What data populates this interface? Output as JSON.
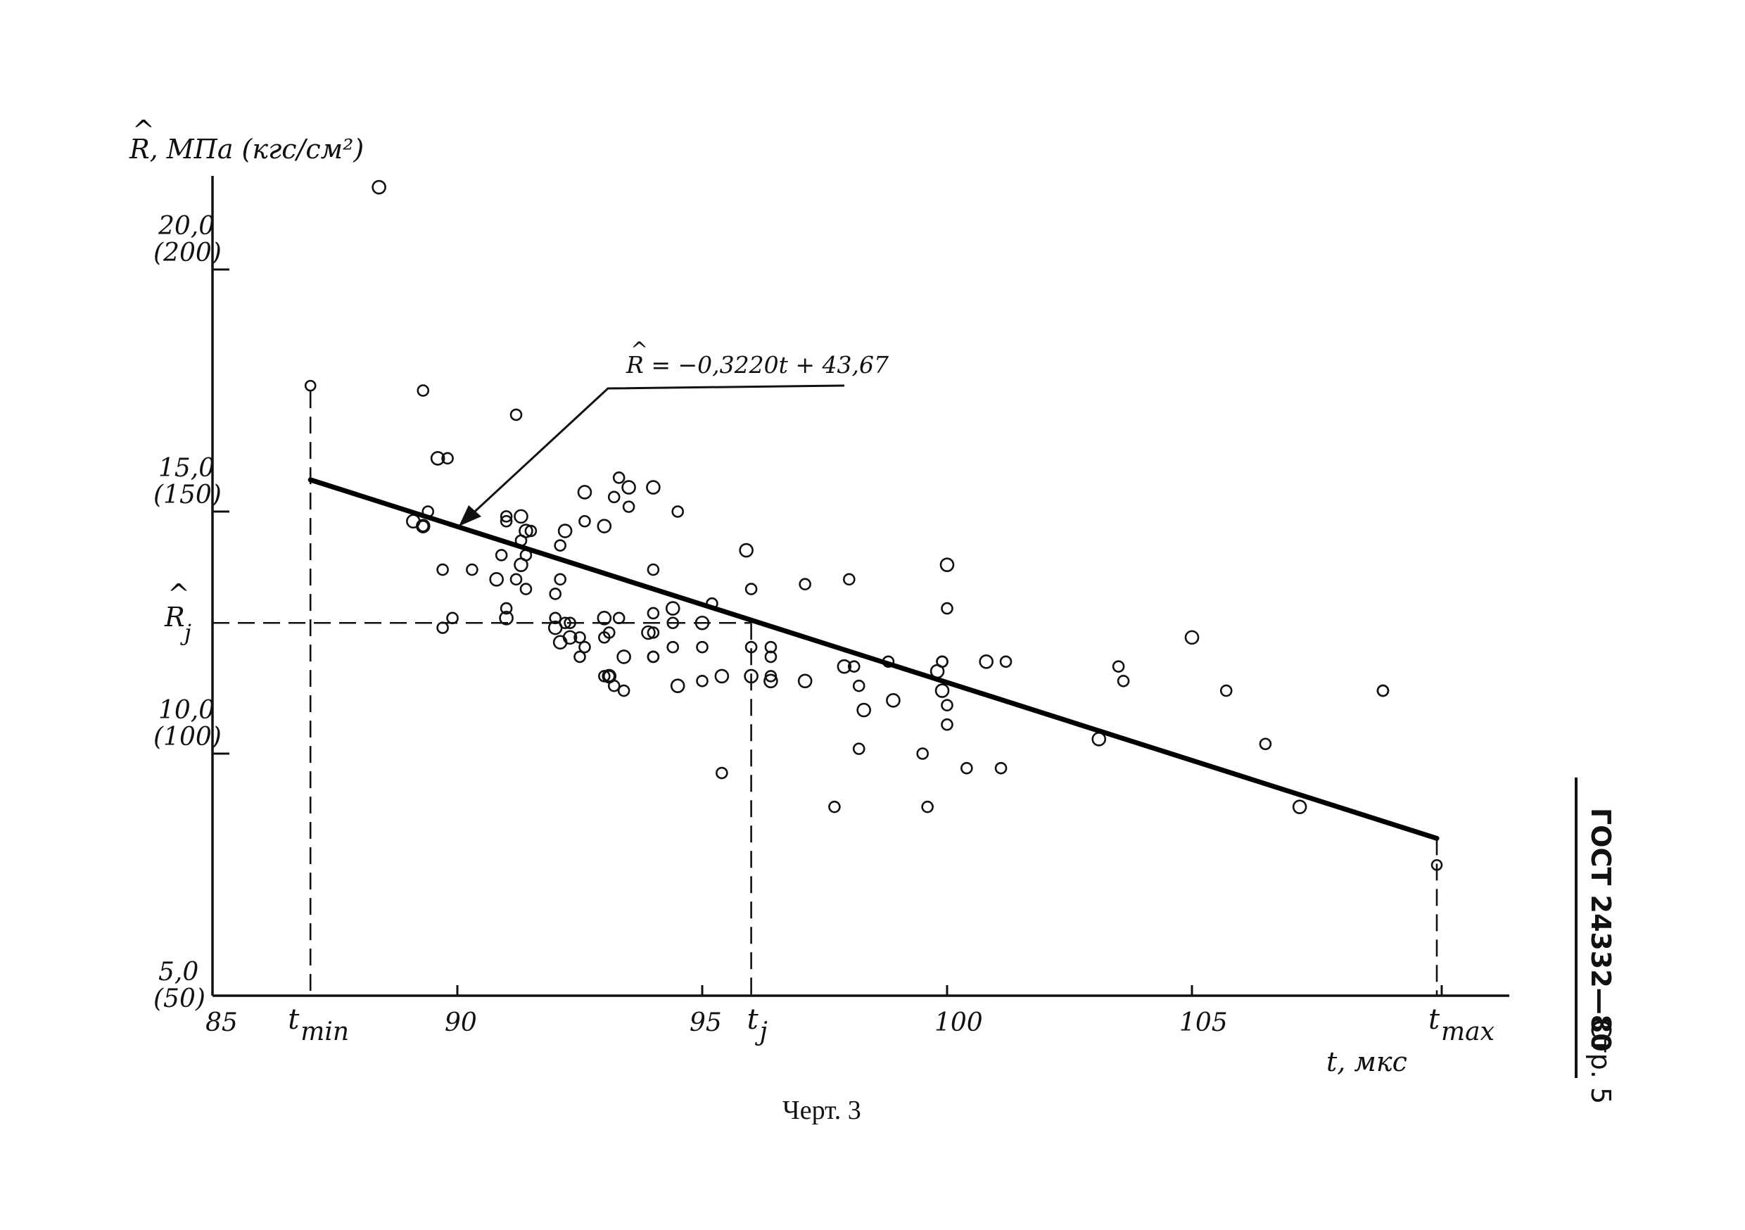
{
  "chart_data": {
    "type": "scatter",
    "x": [
      88.4,
      89.3,
      89.4,
      89.6,
      89.8,
      89.3,
      89.3,
      89.7,
      89.7,
      89.1,
      89.9,
      90.3,
      90.8,
      91.0,
      91.0,
      91.3,
      91.2,
      91.0,
      91.3,
      91.2,
      91.3,
      91.4,
      91.5,
      91.4,
      91.0,
      91.4,
      90.9,
      92.2,
      92.1,
      92.0,
      92.3,
      92.0,
      92.1,
      92.6,
      92.6,
      92.3,
      92.0,
      92.2,
      92.5,
      92.1,
      92.6,
      92.5,
      93.0,
      93.2,
      93.3,
      93.5,
      93.5,
      93.2,
      93.1,
      93.1,
      93.3,
      93.0,
      93.0,
      93.1,
      93.4,
      93.4,
      93.0,
      94.0,
      94.0,
      94.5,
      94.4,
      94.0,
      94.0,
      93.9,
      94.0,
      94.4,
      94.5,
      94.0,
      94.4,
      95.0,
      95.2,
      95.0,
      95.4,
      95.4,
      95.0,
      95.9,
      96.0,
      96.0,
      96.0,
      96.4,
      96.4,
      96.4,
      96.4,
      97.1,
      97.1,
      97.7,
      98.0,
      97.9,
      98.2,
      98.1,
      98.3,
      98.2,
      98.8,
      98.9,
      99.6,
      99.5,
      99.8,
      99.9,
      99.9,
      99.9,
      100.0,
      100.0,
      100.0,
      100.0,
      100.4,
      100.8,
      101.1,
      101.2,
      103.1,
      103.5,
      103.6,
      105.0,
      105.7,
      106.5,
      107.2,
      108.9,
      108.9,
      110.0,
      87.0
    ],
    "y": [
      21.7,
      17.5,
      15.0,
      16.1,
      16.1,
      14.7,
      14.7,
      12.6,
      13.8,
      14.8,
      12.8,
      13.8,
      13.6,
      14.9,
      14.8,
      14.9,
      17.0,
      13.0,
      13.9,
      13.6,
      14.4,
      14.6,
      14.6,
      13.4,
      12.8,
      14.1,
      14.1,
      14.6,
      13.6,
      13.3,
      12.4,
      12.8,
      14.3,
      15.4,
      14.8,
      12.7,
      12.6,
      12.7,
      12.4,
      12.3,
      12.2,
      12.0,
      14.7,
      15.3,
      15.7,
      15.5,
      15.1,
      11.4,
      11.6,
      11.6,
      12.8,
      12.8,
      12.4,
      12.5,
      12.0,
      11.3,
      11.6,
      15.5,
      13.8,
      15.0,
      13.0,
      12.9,
      12.5,
      12.5,
      12.0,
      12.7,
      11.4,
      12.0,
      12.2,
      12.7,
      13.1,
      11.5,
      11.6,
      9.6,
      12.2,
      14.2,
      13.4,
      12.2,
      11.6,
      12.2,
      12.0,
      11.5,
      11.6,
      13.5,
      11.5,
      8.9,
      13.6,
      11.8,
      11.4,
      11.8,
      10.9,
      10.1,
      11.9,
      11.1,
      8.9,
      10.0,
      11.7,
      11.9,
      11.9,
      11.3,
      11.0,
      10.6,
      13.9,
      13.0,
      9.7,
      11.9,
      9.7,
      11.9,
      10.3,
      11.8,
      11.5,
      12.4,
      11.3,
      10.2,
      8.9,
      11.3,
      11.3,
      7.7,
      17.6
    ],
    "regression": {
      "slope": -0.322,
      "intercept": 43.67,
      "x_from": 87.0,
      "x_to": 110.0
    },
    "marker": {
      "t_j": 96.0,
      "R_j": 12.7
    },
    "x_ticks": [
      "85",
      "90",
      "95",
      "100",
      "105"
    ],
    "x_tick_values": [
      85,
      90,
      95,
      100,
      105
    ],
    "y_ticks_mpa": [
      "5,0",
      "10,0",
      "15,0",
      "20,0"
    ],
    "y_ticks_kgf": [
      "(50)",
      "(100)",
      "(150)",
      "(200)"
    ],
    "y_tick_values": [
      5,
      10,
      15,
      20
    ],
    "xlim": [
      85,
      112
    ],
    "ylim": [
      5,
      23
    ],
    "special_x_labels": {
      "tmin_main": "t",
      "tmin_sub": "min",
      "tj_main": "t",
      "tj_sub": "j",
      "tmax_main": "t",
      "tmax_sub": "max"
    },
    "special_x_values": {
      "tmin": 87.0,
      "tj": 96.0,
      "tmax": 110.0
    },
    "ylabel": "R, МПа (кгс/см²)",
    "ylabel_hat": "^",
    "xlabel": "t, мкс",
    "rj_label": "R",
    "rj_sub": "j",
    "rj_hat": "^",
    "equation": "R = −0,3220t + 43,67",
    "equation_hat": "^",
    "grid": false
  },
  "caption": "Черт. 3",
  "side_text": {
    "standard": "ГОСТ 24332—80",
    "page": "Стр. 5"
  }
}
